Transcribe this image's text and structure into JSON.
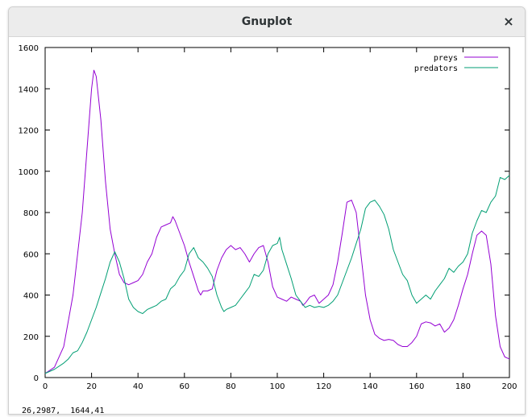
{
  "window": {
    "title": "Gnuplot",
    "close_icon": "close-icon",
    "close_glyph": "×"
  },
  "status_bar": {
    "coordinates": "26,2987,  1644,41"
  },
  "chart_data": {
    "type": "line",
    "title": "",
    "xlabel": "",
    "ylabel": "",
    "xlim": [
      0,
      200
    ],
    "ylim": [
      0,
      1600
    ],
    "x_ticks": [
      0,
      20,
      40,
      60,
      80,
      100,
      120,
      140,
      160,
      180,
      200
    ],
    "y_ticks": [
      0,
      200,
      400,
      600,
      800,
      1000,
      1200,
      1400,
      1600
    ],
    "grid": false,
    "legend_position": "top-right",
    "series": [
      {
        "name": "preys",
        "color": "#9400d3",
        "points": [
          [
            0,
            20
          ],
          [
            4,
            50
          ],
          [
            8,
            150
          ],
          [
            12,
            400
          ],
          [
            16,
            800
          ],
          [
            18,
            1100
          ],
          [
            20,
            1400
          ],
          [
            21,
            1490
          ],
          [
            22,
            1460
          ],
          [
            24,
            1250
          ],
          [
            26,
            950
          ],
          [
            28,
            720
          ],
          [
            30,
            600
          ],
          [
            32,
            500
          ],
          [
            34,
            460
          ],
          [
            36,
            450
          ],
          [
            38,
            460
          ],
          [
            40,
            470
          ],
          [
            42,
            500
          ],
          [
            44,
            560
          ],
          [
            46,
            600
          ],
          [
            48,
            680
          ],
          [
            50,
            730
          ],
          [
            52,
            740
          ],
          [
            54,
            750
          ],
          [
            55,
            780
          ],
          [
            56,
            760
          ],
          [
            58,
            700
          ],
          [
            60,
            640
          ],
          [
            62,
            560
          ],
          [
            64,
            490
          ],
          [
            66,
            420
          ],
          [
            67,
            400
          ],
          [
            68,
            420
          ],
          [
            70,
            420
          ],
          [
            72,
            430
          ],
          [
            74,
            520
          ],
          [
            76,
            580
          ],
          [
            78,
            620
          ],
          [
            80,
            640
          ],
          [
            82,
            620
          ],
          [
            84,
            630
          ],
          [
            86,
            600
          ],
          [
            88,
            560
          ],
          [
            90,
            600
          ],
          [
            92,
            630
          ],
          [
            94,
            640
          ],
          [
            96,
            560
          ],
          [
            98,
            440
          ],
          [
            100,
            390
          ],
          [
            102,
            380
          ],
          [
            104,
            370
          ],
          [
            106,
            390
          ],
          [
            108,
            380
          ],
          [
            110,
            370
          ],
          [
            111,
            350
          ],
          [
            112,
            360
          ],
          [
            114,
            390
          ],
          [
            116,
            400
          ],
          [
            118,
            360
          ],
          [
            120,
            380
          ],
          [
            122,
            400
          ],
          [
            124,
            450
          ],
          [
            126,
            560
          ],
          [
            128,
            700
          ],
          [
            130,
            850
          ],
          [
            132,
            860
          ],
          [
            134,
            800
          ],
          [
            136,
            600
          ],
          [
            138,
            400
          ],
          [
            140,
            280
          ],
          [
            142,
            210
          ],
          [
            144,
            190
          ],
          [
            146,
            180
          ],
          [
            148,
            185
          ],
          [
            150,
            180
          ],
          [
            152,
            160
          ],
          [
            154,
            150
          ],
          [
            156,
            150
          ],
          [
            158,
            170
          ],
          [
            160,
            200
          ],
          [
            162,
            260
          ],
          [
            164,
            270
          ],
          [
            166,
            265
          ],
          [
            168,
            250
          ],
          [
            170,
            260
          ],
          [
            172,
            220
          ],
          [
            174,
            240
          ],
          [
            176,
            280
          ],
          [
            178,
            350
          ],
          [
            180,
            430
          ],
          [
            182,
            500
          ],
          [
            184,
            600
          ],
          [
            186,
            690
          ],
          [
            188,
            710
          ],
          [
            190,
            690
          ],
          [
            192,
            550
          ],
          [
            194,
            300
          ],
          [
            196,
            150
          ],
          [
            198,
            100
          ],
          [
            200,
            90
          ]
        ]
      },
      {
        "name": "predators",
        "color": "#009e73",
        "points": [
          [
            0,
            20
          ],
          [
            4,
            40
          ],
          [
            8,
            70
          ],
          [
            10,
            90
          ],
          [
            12,
            120
          ],
          [
            14,
            130
          ],
          [
            16,
            170
          ],
          [
            18,
            220
          ],
          [
            20,
            280
          ],
          [
            22,
            340
          ],
          [
            24,
            410
          ],
          [
            26,
            480
          ],
          [
            28,
            560
          ],
          [
            30,
            610
          ],
          [
            32,
            560
          ],
          [
            34,
            480
          ],
          [
            36,
            380
          ],
          [
            38,
            340
          ],
          [
            40,
            320
          ],
          [
            42,
            310
          ],
          [
            44,
            330
          ],
          [
            46,
            340
          ],
          [
            48,
            350
          ],
          [
            50,
            370
          ],
          [
            52,
            380
          ],
          [
            54,
            430
          ],
          [
            56,
            450
          ],
          [
            58,
            490
          ],
          [
            60,
            520
          ],
          [
            62,
            600
          ],
          [
            64,
            630
          ],
          [
            66,
            580
          ],
          [
            68,
            560
          ],
          [
            70,
            530
          ],
          [
            72,
            490
          ],
          [
            74,
            400
          ],
          [
            76,
            340
          ],
          [
            77,
            320
          ],
          [
            78,
            330
          ],
          [
            80,
            340
          ],
          [
            82,
            350
          ],
          [
            84,
            380
          ],
          [
            86,
            410
          ],
          [
            88,
            440
          ],
          [
            90,
            500
          ],
          [
            92,
            490
          ],
          [
            94,
            520
          ],
          [
            96,
            600
          ],
          [
            98,
            640
          ],
          [
            100,
            650
          ],
          [
            101,
            680
          ],
          [
            102,
            620
          ],
          [
            104,
            550
          ],
          [
            106,
            480
          ],
          [
            108,
            400
          ],
          [
            110,
            370
          ],
          [
            112,
            340
          ],
          [
            114,
            350
          ],
          [
            116,
            340
          ],
          [
            118,
            345
          ],
          [
            120,
            340
          ],
          [
            122,
            350
          ],
          [
            124,
            370
          ],
          [
            126,
            400
          ],
          [
            128,
            460
          ],
          [
            130,
            520
          ],
          [
            132,
            580
          ],
          [
            134,
            650
          ],
          [
            136,
            720
          ],
          [
            138,
            820
          ],
          [
            140,
            850
          ],
          [
            142,
            860
          ],
          [
            144,
            830
          ],
          [
            146,
            790
          ],
          [
            148,
            720
          ],
          [
            150,
            620
          ],
          [
            152,
            560
          ],
          [
            154,
            500
          ],
          [
            156,
            470
          ],
          [
            158,
            400
          ],
          [
            160,
            360
          ],
          [
            162,
            380
          ],
          [
            164,
            400
          ],
          [
            166,
            380
          ],
          [
            168,
            420
          ],
          [
            170,
            450
          ],
          [
            172,
            480
          ],
          [
            174,
            530
          ],
          [
            176,
            510
          ],
          [
            178,
            540
          ],
          [
            180,
            560
          ],
          [
            182,
            600
          ],
          [
            184,
            700
          ],
          [
            186,
            760
          ],
          [
            188,
            810
          ],
          [
            190,
            800
          ],
          [
            192,
            850
          ],
          [
            194,
            880
          ],
          [
            196,
            970
          ],
          [
            198,
            960
          ],
          [
            200,
            980
          ]
        ]
      }
    ]
  }
}
